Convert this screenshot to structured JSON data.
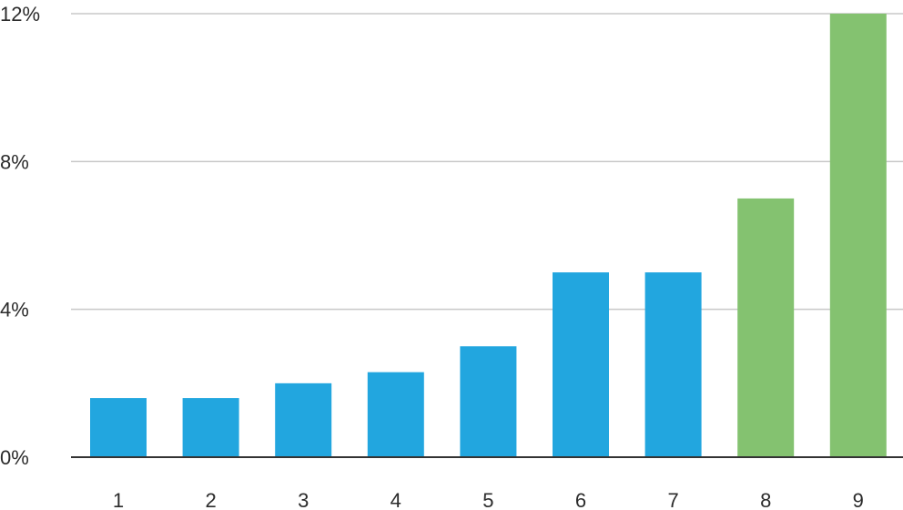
{
  "chart_data": {
    "type": "bar",
    "title": "",
    "xlabel": "",
    "ylabel": "",
    "categories": [
      "1",
      "2",
      "3",
      "4",
      "5",
      "6",
      "7",
      "8",
      "9"
    ],
    "values": [
      1.6,
      1.6,
      2.0,
      2.3,
      3.0,
      5.0,
      5.0,
      7.0,
      12.0
    ],
    "bar_colors": [
      "#22a6df",
      "#22a6df",
      "#22a6df",
      "#22a6df",
      "#22a6df",
      "#22a6df",
      "#22a6df",
      "#84c270",
      "#84c270"
    ],
    "ylim": [
      0,
      12
    ],
    "yticks": [
      0,
      4,
      8,
      12
    ],
    "ytick_labels": [
      "0%",
      "4%",
      "8%",
      "12%"
    ],
    "grid": "horizontal",
    "legend": "none",
    "colors": {
      "primary": "#22a6df",
      "highlight": "#84c270",
      "grid": "#c9c9c9",
      "axis": "#333333",
      "text": "#2b2b2b"
    }
  }
}
